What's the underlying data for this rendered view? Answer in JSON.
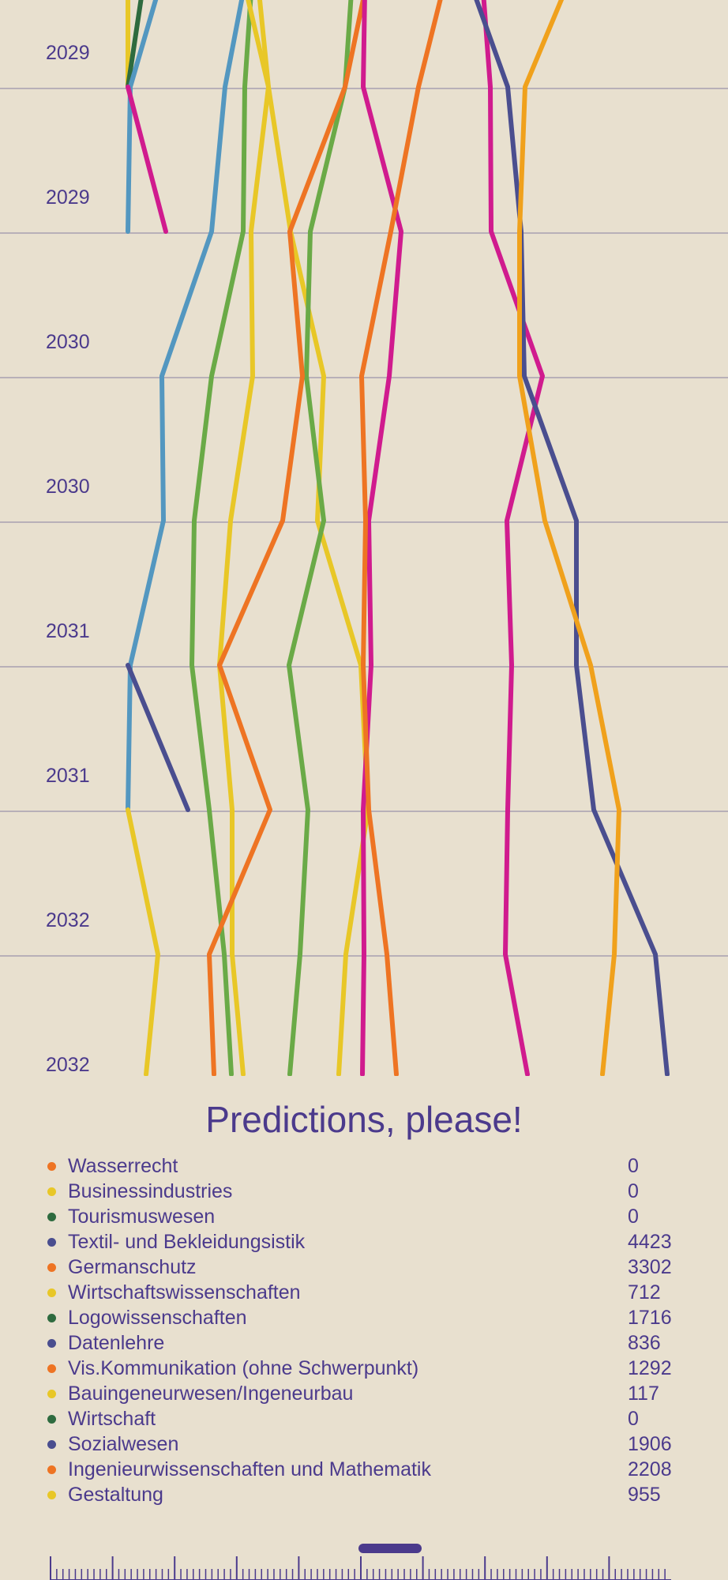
{
  "chart_data": {
    "type": "line",
    "title": "",
    "y_labels": [
      "2029",
      "2029",
      "2030",
      "2030",
      "2031",
      "2031",
      "2032",
      "2032"
    ],
    "x_range": [
      0,
      922
    ],
    "grid": "horizontal",
    "series": [
      {
        "color": "#e8c727",
        "points": [
          [
            162,
            -10
          ],
          [
            162,
            110
          ]
        ]
      },
      {
        "color": "#2e6b3f",
        "points": [
          [
            180,
            -10
          ],
          [
            162,
            110
          ]
        ]
      },
      {
        "color": "#5397c0",
        "points": [
          [
            200,
            -10
          ],
          [
            165,
            110
          ],
          [
            162,
            293
          ]
        ]
      },
      {
        "color": "#d01b8e",
        "points": [
          [
            162,
            110
          ],
          [
            210,
            293
          ]
        ]
      },
      {
        "color": "#5397c0",
        "points": [
          [
            308,
            -10
          ],
          [
            285,
            110
          ],
          [
            268,
            293
          ],
          [
            205,
            476
          ],
          [
            207,
            659
          ],
          [
            165,
            842
          ],
          [
            162,
            1025
          ]
        ]
      },
      {
        "color": "#6aaa47",
        "points": [
          [
            318,
            -10
          ],
          [
            310,
            110
          ],
          [
            308,
            293
          ],
          [
            268,
            476
          ],
          [
            246,
            659
          ],
          [
            243,
            842
          ],
          [
            265,
            1025
          ],
          [
            284,
            1208
          ],
          [
            293,
            1360
          ]
        ]
      },
      {
        "color": "#e8c727",
        "points": [
          [
            312,
            -10
          ],
          [
            340,
            110
          ],
          [
            318,
            293
          ],
          [
            320,
            476
          ],
          [
            292,
            659
          ],
          [
            278,
            842
          ],
          [
            294,
            1025
          ],
          [
            294,
            1208
          ],
          [
            308,
            1360
          ]
        ]
      },
      {
        "color": "#e8c727",
        "points": [
          [
            328,
            -10
          ],
          [
            340,
            110
          ],
          [
            368,
            293
          ],
          [
            410,
            476
          ],
          [
            402,
            659
          ],
          [
            457,
            842
          ],
          [
            466,
            1025
          ],
          [
            438,
            1208
          ],
          [
            429,
            1360
          ]
        ]
      },
      {
        "color": "#e8c727",
        "points": [
          [
            162,
            1025
          ],
          [
            200,
            1208
          ],
          [
            185,
            1360
          ]
        ]
      },
      {
        "color": "#4a4e8f",
        "points": [
          [
            162,
            842
          ],
          [
            238,
            1025
          ]
        ]
      },
      {
        "color": "#6aaa47",
        "points": [
          [
            445,
            -10
          ],
          [
            437,
            110
          ],
          [
            393,
            293
          ],
          [
            388,
            476
          ],
          [
            410,
            659
          ],
          [
            366,
            842
          ],
          [
            390,
            1025
          ],
          [
            380,
            1208
          ],
          [
            367,
            1360
          ]
        ]
      },
      {
        "color": "#ee7423",
        "points": [
          [
            462,
            -10
          ],
          [
            437,
            110
          ],
          [
            367,
            293
          ],
          [
            383,
            476
          ],
          [
            358,
            659
          ],
          [
            278,
            842
          ],
          [
            342,
            1025
          ],
          [
            265,
            1208
          ],
          [
            271,
            1360
          ]
        ]
      },
      {
        "color": "#d01b8e",
        "points": [
          [
            462,
            -10
          ],
          [
            460,
            110
          ],
          [
            508,
            293
          ],
          [
            493,
            476
          ],
          [
            467,
            659
          ],
          [
            470,
            842
          ],
          [
            460,
            1025
          ],
          [
            461,
            1208
          ],
          [
            459,
            1360
          ]
        ]
      },
      {
        "color": "#ee7423",
        "points": [
          [
            560,
            -10
          ],
          [
            530,
            110
          ],
          [
            495,
            293
          ],
          [
            458,
            476
          ],
          [
            463,
            659
          ],
          [
            460,
            842
          ],
          [
            467,
            1025
          ],
          [
            490,
            1208
          ],
          [
            502,
            1360
          ]
        ]
      },
      {
        "color": "#d01b8e",
        "points": [
          [
            612,
            -10
          ],
          [
            621,
            110
          ],
          [
            622,
            293
          ],
          [
            687,
            476
          ],
          [
            642,
            659
          ],
          [
            648,
            842
          ],
          [
            643,
            1025
          ],
          [
            640,
            1208
          ],
          [
            668,
            1360
          ]
        ]
      },
      {
        "color": "#4a4e8f",
        "points": [
          [
            600,
            -10
          ],
          [
            643,
            110
          ],
          [
            660,
            293
          ],
          [
            664,
            476
          ],
          [
            730,
            659
          ],
          [
            730,
            842
          ],
          [
            752,
            1025
          ],
          [
            830,
            1208
          ],
          [
            845,
            1360
          ]
        ]
      },
      {
        "color": "#f0a11c",
        "points": [
          [
            715,
            -10
          ],
          [
            665,
            110
          ],
          [
            658,
            293
          ],
          [
            658,
            476
          ],
          [
            690,
            659
          ],
          [
            748,
            842
          ],
          [
            784,
            1025
          ],
          [
            778,
            1208
          ],
          [
            763,
            1360
          ]
        ]
      }
    ]
  },
  "legend": {
    "title": "Predictions, please!",
    "items": [
      {
        "name": "Wasserrecht",
        "value": "0",
        "color": "#ee7423"
      },
      {
        "name": "Businessindustries",
        "value": "0",
        "color": "#e8c727"
      },
      {
        "name": "Tourismuswesen",
        "value": "0",
        "color": "#2e6b3f"
      },
      {
        "name": "Textil- und Bekleidungsistik",
        "value": "4423",
        "color": "#4a4e8f"
      },
      {
        "name": "Germanschutz",
        "value": "3302",
        "color": "#ee7423"
      },
      {
        "name": "Wirtschaftswissenschaften",
        "value": "712",
        "color": "#e8c727"
      },
      {
        "name": "Logowissenschaften",
        "value": "1716",
        "color": "#2e6b3f"
      },
      {
        "name": "Datenlehre",
        "value": "836",
        "color": "#4a4e8f"
      },
      {
        "name": "Vis.Kommunikation (ohne Schwerpunkt)",
        "value": "1292",
        "color": "#ee7423"
      },
      {
        "name": "Bauingeneurwesen/Ingeneurbau",
        "value": "117",
        "color": "#e8c727"
      },
      {
        "name": "Wirtschaft",
        "value": "0",
        "color": "#2e6b3f"
      },
      {
        "name": "Sozialwesen",
        "value": "1906",
        "color": "#4a4e8f"
      },
      {
        "name": "Ingenieurwissenschaften und Mathematik",
        "value": "2208",
        "color": "#ee7423"
      },
      {
        "name": "Gestaltung",
        "value": "955",
        "color": "#e8c727"
      }
    ]
  },
  "timeline": {
    "position": 0.5
  }
}
